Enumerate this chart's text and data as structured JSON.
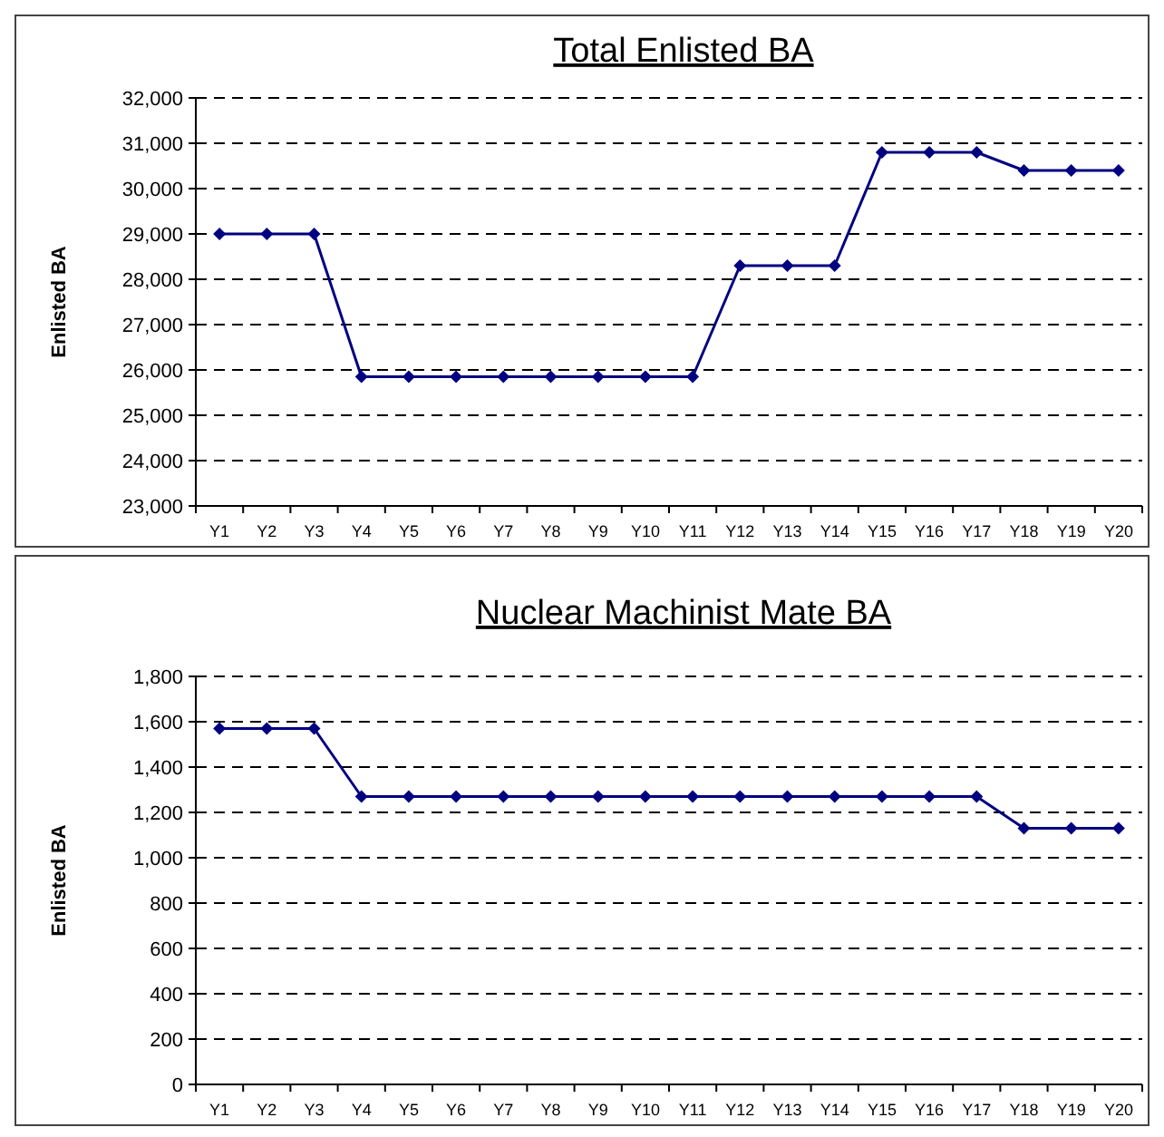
{
  "chart_data": [
    {
      "type": "line",
      "title": "Total Enlisted BA",
      "ylabel": "Enlisted BA",
      "categories": [
        "Y1",
        "Y2",
        "Y3",
        "Y4",
        "Y5",
        "Y6",
        "Y7",
        "Y8",
        "Y9",
        "Y10",
        "Y11",
        "Y12",
        "Y13",
        "Y14",
        "Y15",
        "Y16",
        "Y17",
        "Y18",
        "Y19",
        "Y20"
      ],
      "series": [
        {
          "color": "#000080",
          "values": [
            29000,
            29000,
            29000,
            25850,
            25850,
            25850,
            25850,
            25850,
            25850,
            25850,
            25850,
            28300,
            28300,
            28300,
            30800,
            30800,
            30800,
            30400,
            30400,
            30400
          ]
        }
      ],
      "ylim": [
        23000,
        32000
      ],
      "yticks": [
        {
          "value": 23000,
          "label": "23,000"
        },
        {
          "value": 24000,
          "label": "24,000"
        },
        {
          "value": 25000,
          "label": "25,000"
        },
        {
          "value": 26000,
          "label": "26,000"
        },
        {
          "value": 27000,
          "label": "27,000"
        },
        {
          "value": 28000,
          "label": "28,000"
        },
        {
          "value": 29000,
          "label": "29,000"
        },
        {
          "value": 30000,
          "label": "30,000"
        },
        {
          "value": 31000,
          "label": "31,000"
        },
        {
          "value": 32000,
          "label": "32,000"
        }
      ],
      "grid": "y",
      "marker": "diamond",
      "line_style": "solid"
    },
    {
      "type": "line",
      "title": "Nuclear Machinist Mate BA",
      "ylabel": "Enlisted BA",
      "categories": [
        "Y1",
        "Y2",
        "Y3",
        "Y4",
        "Y5",
        "Y6",
        "Y7",
        "Y8",
        "Y9",
        "Y10",
        "Y11",
        "Y12",
        "Y13",
        "Y14",
        "Y15",
        "Y16",
        "Y17",
        "Y18",
        "Y19",
        "Y20"
      ],
      "series": [
        {
          "color": "#000080",
          "values": [
            1570,
            1570,
            1570,
            1270,
            1270,
            1270,
            1270,
            1270,
            1270,
            1270,
            1270,
            1270,
            1270,
            1270,
            1270,
            1270,
            1270,
            1130,
            1130,
            1130
          ]
        }
      ],
      "ylim": [
        0,
        1800
      ],
      "yticks": [
        0,
        200,
        400,
        600,
        800,
        {
          "value": 1000,
          "label": "1,000"
        },
        {
          "value": 1200,
          "label": "1,200"
        },
        {
          "value": 1400,
          "label": "1,400"
        },
        {
          "value": 1600,
          "label": "1,600"
        },
        {
          "value": 1800,
          "label": "1,800"
        }
      ],
      "grid": "y",
      "marker": "diamond",
      "line_style": "solid"
    }
  ]
}
